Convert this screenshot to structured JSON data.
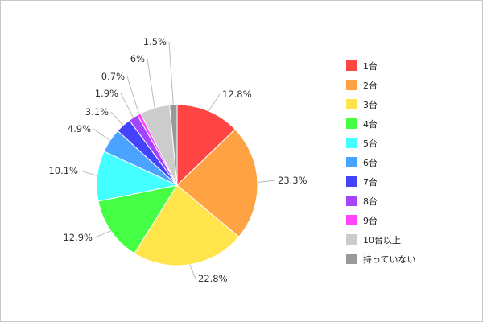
{
  "chart_data": {
    "type": "pie",
    "title": "",
    "legend_position": "right",
    "slices": [
      {
        "label": "1台",
        "value": 12.8,
        "pct_label": "12.8%",
        "color": "#ff4444"
      },
      {
        "label": "2台",
        "value": 23.3,
        "pct_label": "23.3%",
        "color": "#ffa244"
      },
      {
        "label": "3台",
        "value": 22.8,
        "pct_label": "22.8%",
        "color": "#ffe44c"
      },
      {
        "label": "4台",
        "value": 12.9,
        "pct_label": "12.9%",
        "color": "#44ff44"
      },
      {
        "label": "5台",
        "value": 10.1,
        "pct_label": "10.1%",
        "color": "#44ffff"
      },
      {
        "label": "6台",
        "value": 4.9,
        "pct_label": "4.9%",
        "color": "#4aa3ff"
      },
      {
        "label": "7台",
        "value": 3.1,
        "pct_label": "3.1%",
        "color": "#4444ff"
      },
      {
        "label": "8台",
        "value": 1.9,
        "pct_label": "1.9%",
        "color": "#a444ff"
      },
      {
        "label": "9台",
        "value": 0.7,
        "pct_label": "0.7%",
        "color": "#ff44ff"
      },
      {
        "label": "10台以上",
        "value": 6,
        "pct_label": "6%",
        "color": "#cccccc"
      },
      {
        "label": "持っていない",
        "value": 1.5,
        "pct_label": "1.5%",
        "color": "#999999"
      }
    ]
  }
}
